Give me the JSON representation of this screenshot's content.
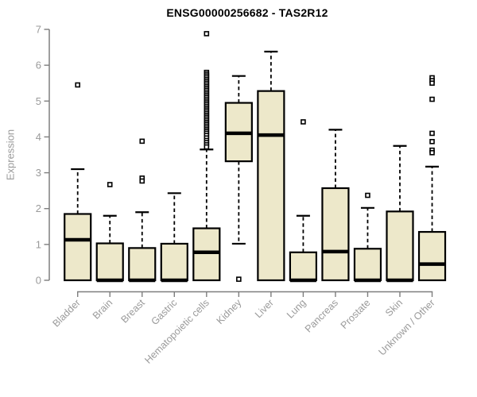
{
  "title": "ENSG00000256682 - TAS2R12",
  "colors": {
    "box_fill": "#EDE8CA",
    "box_stroke": "#000000",
    "median": "#000000",
    "whisker": "#000000",
    "axis": "#7e7e7e",
    "tick_label": "#9a9a9a",
    "title": "#000000",
    "background": "#ffffff"
  },
  "chart_data": {
    "type": "boxplot",
    "title": "ENSG00000256682 - TAS2R12",
    "ylabel": "Expression",
    "xlabel": "",
    "ylim": [
      0,
      7
    ],
    "yticks": [
      0,
      1,
      2,
      3,
      4,
      5,
      6,
      7
    ],
    "grid": false,
    "legend": false,
    "categories": [
      "Bladder",
      "Brain",
      "Breast",
      "Gastric",
      "Hematopoietic cells",
      "Kidney",
      "Liver",
      "Lung",
      "Pancreas",
      "Prostate",
      "Skin",
      "Unknown / Other"
    ],
    "boxes": [
      {
        "category": "Bladder",
        "whisker_low": 0,
        "q1": 0,
        "median": 1.13,
        "q3": 1.85,
        "whisker_high": 3.1,
        "outliers": [
          5.45
        ]
      },
      {
        "category": "Brain",
        "whisker_low": 0,
        "q1": 0,
        "median": 0,
        "q3": 1.03,
        "whisker_high": 1.8,
        "outliers": [
          2.67
        ]
      },
      {
        "category": "Breast",
        "whisker_low": 0,
        "q1": 0,
        "median": 0,
        "q3": 0.9,
        "whisker_high": 1.9,
        "outliers": [
          3.88,
          2.85,
          2.77
        ]
      },
      {
        "category": "Gastric",
        "whisker_low": 0,
        "q1": 0,
        "median": 0,
        "q3": 1.02,
        "whisker_high": 2.43,
        "outliers": []
      },
      {
        "category": "Hematopoietic cells",
        "whisker_low": 0,
        "q1": 0,
        "median": 0.78,
        "q3": 1.45,
        "whisker_high": 3.65,
        "outliers": [
          6.88,
          5.8,
          5.75,
          5.7,
          5.65,
          5.6,
          5.55,
          5.5,
          5.45,
          5.4,
          5.35,
          5.3,
          5.25,
          5.2,
          5.15,
          5.1,
          5.05,
          5.0,
          4.95,
          4.9,
          4.85,
          4.8,
          4.75,
          4.7,
          4.65,
          4.6,
          4.55,
          4.5,
          4.45,
          4.4,
          4.35,
          4.3,
          4.25,
          4.2,
          4.15,
          4.1,
          4.04,
          3.97,
          3.9,
          3.84,
          3.78,
          3.72
        ]
      },
      {
        "category": "Kidney",
        "whisker_low": 1.02,
        "q1": 3.32,
        "median": 4.1,
        "q3": 4.95,
        "whisker_high": 5.7,
        "outliers": [
          0.03
        ]
      },
      {
        "category": "Liver",
        "whisker_low": 0,
        "q1": 0,
        "median": 4.05,
        "q3": 5.28,
        "whisker_high": 6.38,
        "outliers": []
      },
      {
        "category": "Lung",
        "whisker_low": 0,
        "q1": 0,
        "median": 0,
        "q3": 0.78,
        "whisker_high": 1.8,
        "outliers": [
          4.42
        ]
      },
      {
        "category": "Pancreas",
        "whisker_low": 0,
        "q1": 0,
        "median": 0.8,
        "q3": 2.57,
        "whisker_high": 4.2,
        "outliers": []
      },
      {
        "category": "Prostate",
        "whisker_low": 0,
        "q1": 0,
        "median": 0,
        "q3": 0.88,
        "whisker_high": 2.02,
        "outliers": [
          2.37
        ]
      },
      {
        "category": "Skin",
        "whisker_low": 0,
        "q1": 0,
        "median": 0,
        "q3": 1.92,
        "whisker_high": 3.75,
        "outliers": []
      },
      {
        "category": "Unknown / Other",
        "whisker_low": 0,
        "q1": 0,
        "median": 0.45,
        "q3": 1.35,
        "whisker_high": 3.17,
        "outliers": [
          5.65,
          5.57,
          5.5,
          5.05,
          4.1,
          3.87,
          3.63,
          3.56
        ]
      }
    ]
  }
}
